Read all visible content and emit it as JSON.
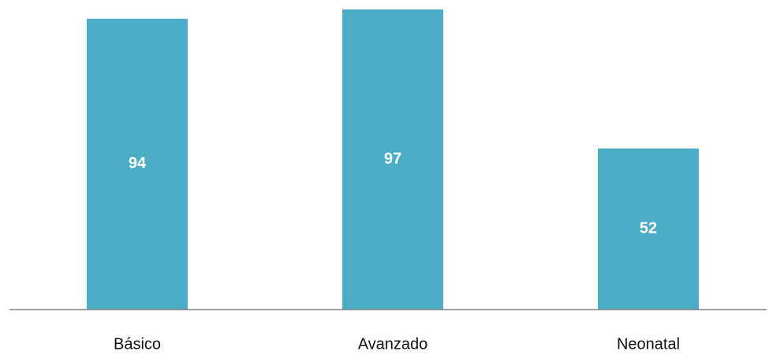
{
  "chart_data": {
    "type": "bar",
    "categories": [
      "Básico",
      "Avanzado",
      "Neonatal"
    ],
    "values": [
      94,
      97,
      52
    ],
    "color": "#4bacc6"
  }
}
